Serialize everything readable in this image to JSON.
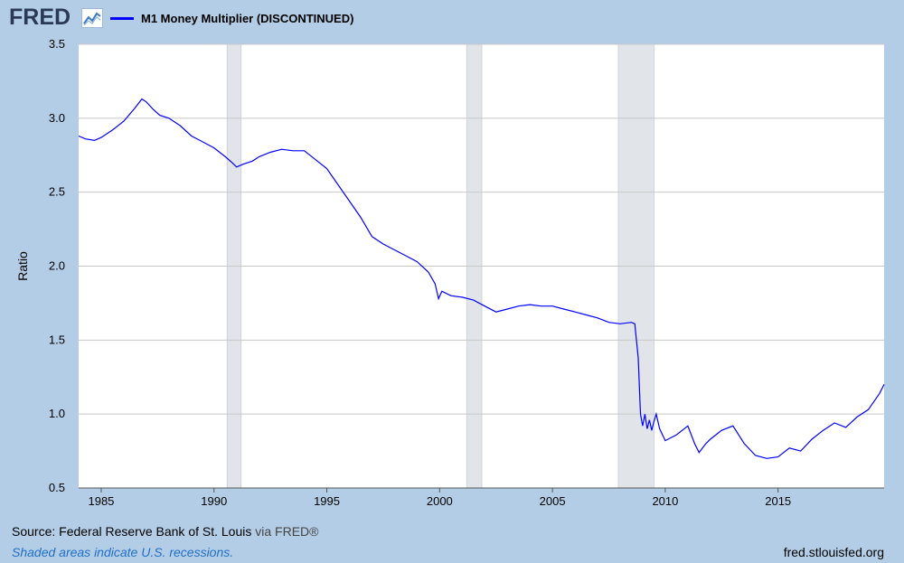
{
  "header": {
    "logo_text": "FRED",
    "logo_icon": "trend-line-icon",
    "legend_label": "M1 Money Multiplier (DISCONTINUED)",
    "legend_color": "#0000ff"
  },
  "footer": {
    "source": "Source: Federal Reserve Bank of St. Louis",
    "via": " via FRED®",
    "note": "Shaded areas indicate U.S. recessions.",
    "url": "fred.stlouisfed.org"
  },
  "chart_data": {
    "type": "line",
    "title": "",
    "xlabel": "",
    "ylabel": "Ratio",
    "xlim": [
      1984.0,
      2019.7
    ],
    "ylim": [
      0.5,
      3.5
    ],
    "yticks": [
      0.5,
      1.0,
      1.5,
      2.0,
      2.5,
      3.0,
      3.5
    ],
    "ytick_labels": [
      "0.5",
      "1.0",
      "1.5",
      "2.0",
      "2.5",
      "3.0",
      "3.5"
    ],
    "xticks": [
      1985,
      1990,
      1995,
      2000,
      2005,
      2010,
      2015
    ],
    "xtick_labels": [
      "1985",
      "1990",
      "1995",
      "2000",
      "2005",
      "2010",
      "2015"
    ],
    "grid": true,
    "line_color": "#0000ff",
    "recession_color": "#e1e5ea",
    "recessions": [
      [
        1990.58,
        1991.2
      ],
      [
        2001.2,
        2001.87
      ],
      [
        2007.92,
        2009.5
      ]
    ],
    "series": [
      {
        "name": "M1 Money Multiplier (DISCONTINUED)",
        "x": [
          1984.0,
          1984.3,
          1984.7,
          1985.0,
          1985.5,
          1986.0,
          1986.5,
          1986.8,
          1987.0,
          1987.3,
          1987.6,
          1988.0,
          1988.5,
          1989.0,
          1989.5,
          1990.0,
          1990.5,
          1990.8,
          1991.0,
          1991.3,
          1991.7,
          1992.0,
          1992.5,
          1993.0,
          1993.5,
          1994.0,
          1994.5,
          1995.0,
          1995.5,
          1996.0,
          1996.5,
          1997.0,
          1997.5,
          1998.0,
          1998.5,
          1999.0,
          1999.5,
          1999.8,
          1999.95,
          2000.1,
          2000.5,
          2001.0,
          2001.5,
          2002.0,
          2002.5,
          2003.0,
          2003.5,
          2004.0,
          2004.5,
          2005.0,
          2005.5,
          2006.0,
          2006.5,
          2007.0,
          2007.5,
          2008.0,
          2008.5,
          2008.65,
          2008.8,
          2008.9,
          2009.0,
          2009.1,
          2009.2,
          2009.3,
          2009.4,
          2009.5,
          2009.6,
          2009.75,
          2010.0,
          2010.5,
          2011.0,
          2011.3,
          2011.5,
          2011.8,
          2012.0,
          2012.5,
          2013.0,
          2013.5,
          2014.0,
          2014.5,
          2015.0,
          2015.5,
          2016.0,
          2016.5,
          2017.0,
          2017.5,
          2018.0,
          2018.5,
          2019.0,
          2019.5,
          2019.7
        ],
        "values": [
          2.88,
          2.86,
          2.85,
          2.87,
          2.92,
          2.98,
          3.07,
          3.13,
          3.11,
          3.06,
          3.02,
          3.0,
          2.95,
          2.88,
          2.84,
          2.8,
          2.74,
          2.7,
          2.67,
          2.69,
          2.71,
          2.74,
          2.77,
          2.79,
          2.78,
          2.78,
          2.72,
          2.66,
          2.55,
          2.44,
          2.33,
          2.2,
          2.15,
          2.11,
          2.07,
          2.03,
          1.96,
          1.88,
          1.78,
          1.83,
          1.8,
          1.79,
          1.77,
          1.73,
          1.69,
          1.71,
          1.73,
          1.74,
          1.73,
          1.73,
          1.71,
          1.69,
          1.67,
          1.65,
          1.62,
          1.61,
          1.62,
          1.61,
          1.38,
          1.0,
          0.92,
          1.0,
          0.9,
          0.96,
          0.89,
          0.95,
          1.0,
          0.9,
          0.82,
          0.86,
          0.92,
          0.8,
          0.74,
          0.8,
          0.83,
          0.89,
          0.92,
          0.8,
          0.72,
          0.7,
          0.71,
          0.77,
          0.75,
          0.83,
          0.89,
          0.94,
          0.91,
          0.98,
          1.03,
          1.14,
          1.2
        ]
      }
    ]
  }
}
